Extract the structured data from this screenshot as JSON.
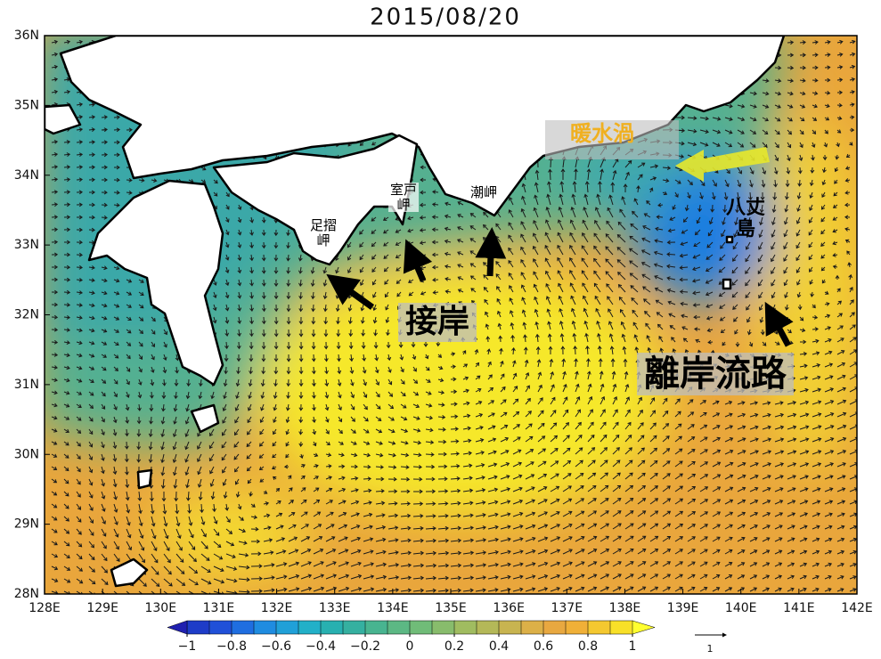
{
  "map": {
    "title": "2015/08/20",
    "lonlim": [
      128,
      142
    ],
    "latlim": [
      28,
      36
    ],
    "lonticks": [
      {
        "value": 128,
        "label": "128E"
      },
      {
        "value": 129,
        "label": "129E"
      },
      {
        "value": 130,
        "label": "130E"
      },
      {
        "value": 131,
        "label": "131E"
      },
      {
        "value": 132,
        "label": "132E"
      },
      {
        "value": 133,
        "label": "133E"
      },
      {
        "value": 134,
        "label": "134E"
      },
      {
        "value": 135,
        "label": "135E"
      },
      {
        "value": 136,
        "label": "136E"
      },
      {
        "value": 137,
        "label": "137E"
      },
      {
        "value": 138,
        "label": "138E"
      },
      {
        "value": 139,
        "label": "139E"
      },
      {
        "value": 140,
        "label": "140E"
      },
      {
        "value": 141,
        "label": "141E"
      },
      {
        "value": 142,
        "label": "142E"
      }
    ],
    "latticks": [
      {
        "value": 28,
        "label": "28N"
      },
      {
        "value": 29,
        "label": "29N"
      },
      {
        "value": 30,
        "label": "30N"
      },
      {
        "value": 31,
        "label": "31N"
      },
      {
        "value": 32,
        "label": "32N"
      },
      {
        "value": 33,
        "label": "33N"
      },
      {
        "value": 34,
        "label": "34N"
      },
      {
        "value": 35,
        "label": "35N"
      },
      {
        "value": 36,
        "label": "36N"
      }
    ],
    "colorbar": {
      "lim": [
        -1,
        1
      ],
      "ticks": [
        {
          "value": -1,
          "label": "−1"
        },
        {
          "value": -0.8,
          "label": "−0.8"
        },
        {
          "value": -0.6,
          "label": "−0.6"
        },
        {
          "value": -0.4,
          "label": "−0.4"
        },
        {
          "value": -0.2,
          "label": "−0.2"
        },
        0,
        0.2,
        0.4,
        0.6,
        0.8,
        1
      ],
      "colors": [
        "#1e3cc8",
        "#2050d8",
        "#1f6ee0",
        "#1f8ce0",
        "#20a0d8",
        "#22b0c8",
        "#28b0b0",
        "#35b0a0",
        "#48b490",
        "#5cb884",
        "#70bc78",
        "#88bc6c",
        "#a0bc60",
        "#b4b858",
        "#c8b450",
        "#dcb048",
        "#e8a840",
        "#f0b038",
        "#f4c830",
        "#f8e028"
      ],
      "under": "#2020b0",
      "over": "#ffff30"
    },
    "vector_scale": 1,
    "annotations": {
      "warm_eddy": "暖水渦",
      "hachijo": "八丈島",
      "ashizuri": "足摺岬",
      "muroto": "室戸岬",
      "shiono": "潮岬",
      "approach": "接岸",
      "offshore_path": "離岸流路"
    }
  }
}
